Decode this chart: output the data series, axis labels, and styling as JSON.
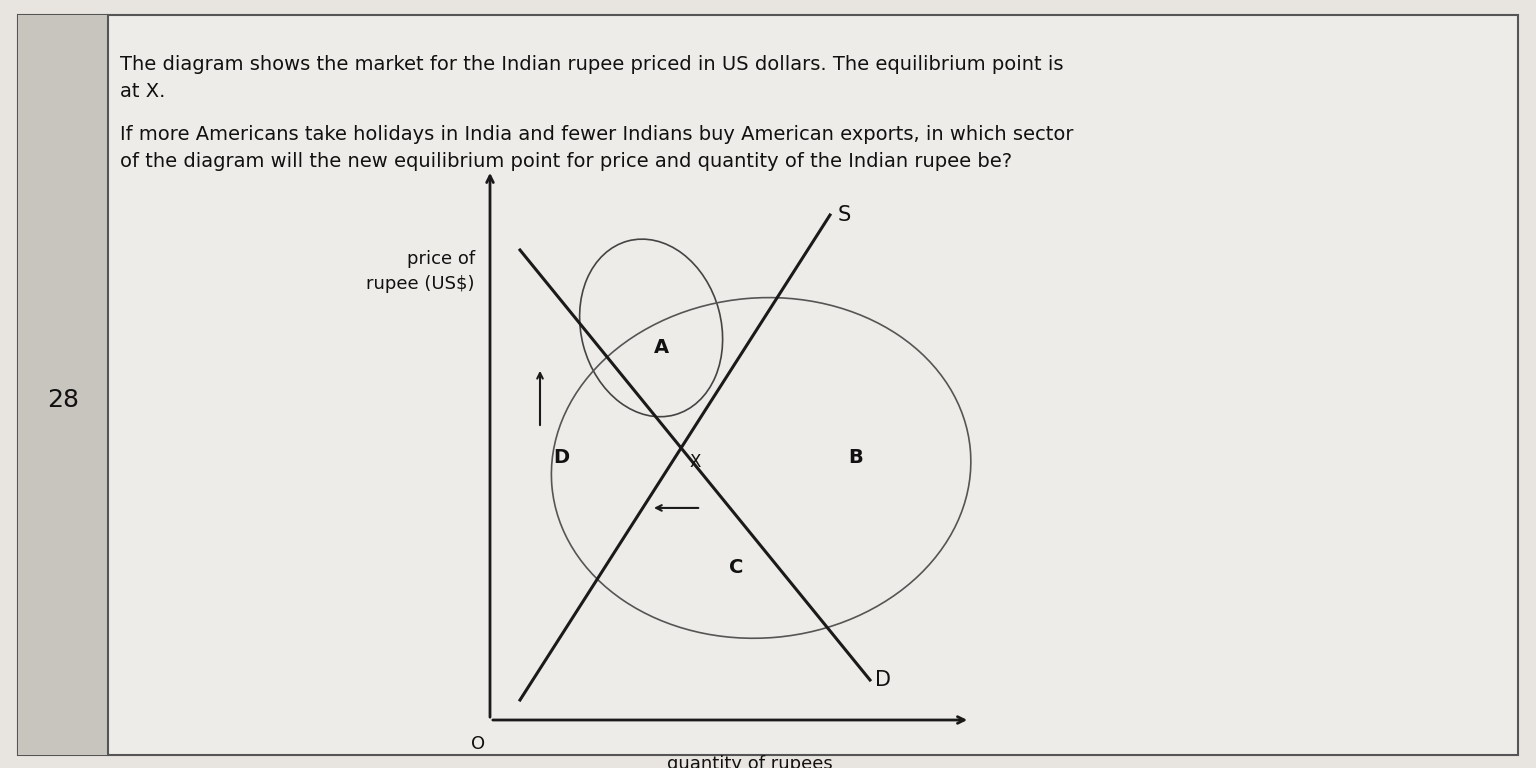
{
  "title_line1": "The diagram shows the market for the Indian rupee priced in US dollars. The equilibrium point is",
  "title_line2": "at X.",
  "question_line1": "If more Americans take holidays in India and fewer Indians buy American exports, in which sector",
  "question_line2": "of the diagram will the new equilibrium point for price and quantity of the Indian rupee be?",
  "question_number": "28",
  "ylabel": "price of\nrupee (US$)",
  "xlabel": "quantity of rupees",
  "origin_label": "O",
  "supply_label": "S",
  "demand_label": "D",
  "equilibrium_label": "X",
  "background_color": "#e8e5e0",
  "left_col_color": "#c8c5c0",
  "text_color": "#111111",
  "line_color": "#1a1a1a",
  "font_size_text": 14,
  "font_size_labels": 14,
  "font_size_axis_labels": 13
}
